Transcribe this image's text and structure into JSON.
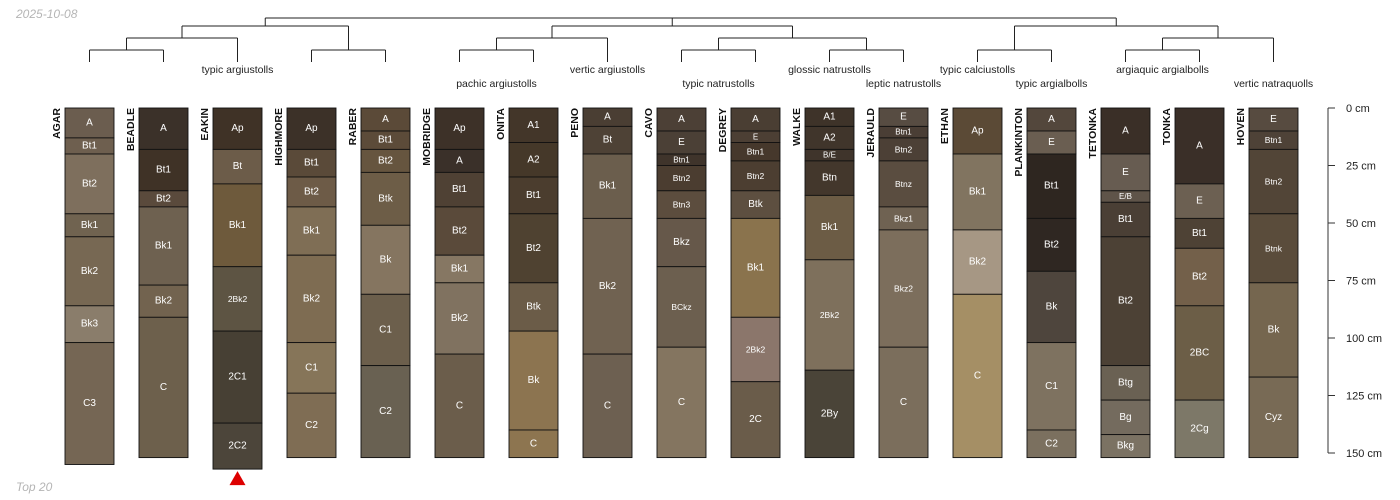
{
  "date_label": "2025-10-08",
  "footer_label": "Top 20",
  "depth_axis": {
    "max_cm": 150,
    "ticks": [
      {
        "value": 0,
        "label": "0 cm"
      },
      {
        "value": 25,
        "label": "25 cm"
      },
      {
        "value": 50,
        "label": "50 cm"
      },
      {
        "value": 75,
        "label": "75 cm"
      },
      {
        "value": 100,
        "label": "100 cm"
      },
      {
        "value": 125,
        "label": "125 cm"
      },
      {
        "value": 150,
        "label": "150 cm"
      }
    ]
  },
  "marker": {
    "profile": "EAKIN",
    "color": "#dd0000"
  },
  "taxa": [
    {
      "label": "typic argiustolls",
      "members": [
        "AGAR",
        "BEADLE",
        "EAKIN",
        "HIGHMORE",
        "RABER"
      ]
    },
    {
      "label": "pachic argiustolls",
      "members": [
        "MOBRIDGE",
        "ONITA"
      ]
    },
    {
      "label": "vertic argiustolls",
      "members": [
        "PENO"
      ]
    },
    {
      "label": "typic natrustolls",
      "members": [
        "CAVO",
        "DEGREY"
      ]
    },
    {
      "label": "glossic natrustolls",
      "members": [
        "WALKE"
      ]
    },
    {
      "label": "leptic natrustolls",
      "members": [
        "JERAULD"
      ]
    },
    {
      "label": "typic calciustolls",
      "members": [
        "ETHAN"
      ]
    },
    {
      "label": "typic argialbolls",
      "members": [
        "PLANKINTON"
      ]
    },
    {
      "label": "argiaquic argialbolls",
      "members": [
        "TETONKA",
        "TONKA"
      ]
    },
    {
      "label": "vertic natraquolls",
      "members": [
        "HOVEN"
      ]
    }
  ],
  "profiles": [
    {
      "name": "AGAR",
      "horizons": [
        {
          "name": "A",
          "top": 0,
          "bottom": 13,
          "color": "#6b5d4f"
        },
        {
          "name": "Bt1",
          "top": 13,
          "bottom": 20,
          "color": "#6e5f4f"
        },
        {
          "name": "Bt2",
          "top": 20,
          "bottom": 46,
          "color": "#7e6f5d"
        },
        {
          "name": "Bk1",
          "top": 46,
          "bottom": 56,
          "color": "#706350"
        },
        {
          "name": "Bk2",
          "top": 56,
          "bottom": 86,
          "color": "#776853"
        },
        {
          "name": "Bk3",
          "top": 86,
          "bottom": 102,
          "color": "#8a7d6b"
        },
        {
          "name": "C3",
          "top": 102,
          "bottom": 155,
          "color": "#756654"
        }
      ]
    },
    {
      "name": "BEADLE",
      "horizons": [
        {
          "name": "A",
          "top": 0,
          "bottom": 18,
          "color": "#3b3129"
        },
        {
          "name": "Bt1",
          "top": 18,
          "bottom": 36,
          "color": "#3f3226"
        },
        {
          "name": "Bt2",
          "top": 36,
          "bottom": 43,
          "color": "#5a4a3c"
        },
        {
          "name": "Bk1",
          "top": 43,
          "bottom": 77,
          "color": "#6e6150"
        },
        {
          "name": "Bk2",
          "top": 77,
          "bottom": 91,
          "color": "#72634f"
        },
        {
          "name": "C",
          "top": 91,
          "bottom": 152,
          "color": "#6d604c"
        }
      ]
    },
    {
      "name": "EAKIN",
      "horizons": [
        {
          "name": "Ap",
          "top": 0,
          "bottom": 18,
          "color": "#3f3226"
        },
        {
          "name": "Bt",
          "top": 18,
          "bottom": 33,
          "color": "#6c5c49"
        },
        {
          "name": "Bk1",
          "top": 33,
          "bottom": 69,
          "color": "#6e5a3c"
        },
        {
          "name": "2Bk2",
          "top": 69,
          "bottom": 97,
          "color": "#5d5443"
        },
        {
          "name": "2C1",
          "top": 97,
          "bottom": 137,
          "color": "#474034"
        },
        {
          "name": "2C2",
          "top": 137,
          "bottom": 157,
          "color": "#4c453a"
        }
      ]
    },
    {
      "name": "HIGHMORE",
      "horizons": [
        {
          "name": "Ap",
          "top": 0,
          "bottom": 18,
          "color": "#3c3128"
        },
        {
          "name": "Bt1",
          "top": 18,
          "bottom": 30,
          "color": "#5a4a39"
        },
        {
          "name": "Bt2",
          "top": 30,
          "bottom": 43,
          "color": "#6d5b47"
        },
        {
          "name": "Bk1",
          "top": 43,
          "bottom": 64,
          "color": "#7f6e55"
        },
        {
          "name": "Bk2",
          "top": 64,
          "bottom": 102,
          "color": "#7e6c52"
        },
        {
          "name": "C1",
          "top": 102,
          "bottom": 124,
          "color": "#867559"
        },
        {
          "name": "C2",
          "top": 124,
          "bottom": 152,
          "color": "#7f6d54"
        }
      ]
    },
    {
      "name": "RABER",
      "horizons": [
        {
          "name": "A",
          "top": 0,
          "bottom": 10,
          "color": "#5b4a38"
        },
        {
          "name": "Bt1",
          "top": 10,
          "bottom": 18,
          "color": "#5c4b39"
        },
        {
          "name": "Bt2",
          "top": 18,
          "bottom": 28,
          "color": "#66553f"
        },
        {
          "name": "Btk",
          "top": 28,
          "bottom": 51,
          "color": "#6d5d47"
        },
        {
          "name": "Bk",
          "top": 51,
          "bottom": 81,
          "color": "#857560"
        },
        {
          "name": "C1",
          "top": 81,
          "bottom": 112,
          "color": "#6c5f4c"
        },
        {
          "name": "C2",
          "top": 112,
          "bottom": 152,
          "color": "#696152"
        }
      ]
    },
    {
      "name": "MOBRIDGE",
      "horizons": [
        {
          "name": "Ap",
          "top": 0,
          "bottom": 18,
          "color": "#3d3128"
        },
        {
          "name": "A",
          "top": 18,
          "bottom": 28,
          "color": "#3a3029"
        },
        {
          "name": "Bt1",
          "top": 28,
          "bottom": 43,
          "color": "#4f4134"
        },
        {
          "name": "Bt2",
          "top": 43,
          "bottom": 64,
          "color": "#5a4a3a"
        },
        {
          "name": "Bk1",
          "top": 64,
          "bottom": 76,
          "color": "#867763"
        },
        {
          "name": "Bk2",
          "top": 76,
          "bottom": 107,
          "color": "#807260"
        },
        {
          "name": "C",
          "top": 107,
          "bottom": 152,
          "color": "#6b5d4b"
        }
      ]
    },
    {
      "name": "ONITA",
      "horizons": [
        {
          "name": "A1",
          "top": 0,
          "bottom": 15,
          "color": "#433629"
        },
        {
          "name": "A2",
          "top": 15,
          "bottom": 30,
          "color": "#453829"
        },
        {
          "name": "Bt1",
          "top": 30,
          "bottom": 46,
          "color": "#4b3d2e"
        },
        {
          "name": "Bt2",
          "top": 46,
          "bottom": 76,
          "color": "#4f4231"
        },
        {
          "name": "Btk",
          "top": 76,
          "bottom": 97,
          "color": "#6b5c48"
        },
        {
          "name": "Bk",
          "top": 97,
          "bottom": 140,
          "color": "#8c7450"
        },
        {
          "name": "C",
          "top": 140,
          "bottom": 152,
          "color": "#8d7550"
        }
      ]
    },
    {
      "name": "PENO",
      "horizons": [
        {
          "name": "A",
          "top": 0,
          "bottom": 8,
          "color": "#4a3e33"
        },
        {
          "name": "Bt",
          "top": 8,
          "bottom": 20,
          "color": "#4e4236"
        },
        {
          "name": "Bk1",
          "top": 20,
          "bottom": 48,
          "color": "#6b5e4d"
        },
        {
          "name": "Bk2",
          "top": 48,
          "bottom": 107,
          "color": "#706251"
        },
        {
          "name": "C",
          "top": 107,
          "bottom": 152,
          "color": "#6d6051"
        }
      ]
    },
    {
      "name": "CAVO",
      "horizons": [
        {
          "name": "A",
          "top": 0,
          "bottom": 10,
          "color": "#4c4036"
        },
        {
          "name": "E",
          "top": 10,
          "bottom": 20,
          "color": "#4b4036"
        },
        {
          "name": "Btn1",
          "top": 20,
          "bottom": 25,
          "color": "#3f342b"
        },
        {
          "name": "Btn2",
          "top": 25,
          "bottom": 36,
          "color": "#4b3d30"
        },
        {
          "name": "Btn3",
          "top": 36,
          "bottom": 48,
          "color": "#5c4d3e"
        },
        {
          "name": "Bkz",
          "top": 48,
          "bottom": 69,
          "color": "#66584a"
        },
        {
          "name": "BCkz",
          "top": 69,
          "bottom": 104,
          "color": "#6c5f4f"
        },
        {
          "name": "C",
          "top": 104,
          "bottom": 152,
          "color": "#847560"
        }
      ]
    },
    {
      "name": "DEGREY",
      "horizons": [
        {
          "name": "A",
          "top": 0,
          "bottom": 10,
          "color": "#4a3e33"
        },
        {
          "name": "E",
          "top": 10,
          "bottom": 15,
          "color": "#4c3f34"
        },
        {
          "name": "Btn1",
          "top": 15,
          "bottom": 23,
          "color": "#46382c"
        },
        {
          "name": "Btn2",
          "top": 23,
          "bottom": 36,
          "color": "#4c3e31"
        },
        {
          "name": "Btk",
          "top": 36,
          "bottom": 48,
          "color": "#5d4f40"
        },
        {
          "name": "Bk1",
          "top": 48,
          "bottom": 91,
          "color": "#8a734d"
        },
        {
          "name": "2Bk2",
          "top": 91,
          "bottom": 119,
          "color": "#8b766b"
        },
        {
          "name": "2C",
          "top": 119,
          "bottom": 152,
          "color": "#6a5c4a"
        }
      ]
    },
    {
      "name": "WALKE",
      "horizons": [
        {
          "name": "A1",
          "top": 0,
          "bottom": 8,
          "color": "#3e3329"
        },
        {
          "name": "A2",
          "top": 8,
          "bottom": 18,
          "color": "#40352b"
        },
        {
          "name": "B/E",
          "top": 18,
          "bottom": 23,
          "color": "#3f342b"
        },
        {
          "name": "Btn",
          "top": 23,
          "bottom": 38,
          "color": "#43372c"
        },
        {
          "name": "Bk1",
          "top": 38,
          "bottom": 66,
          "color": "#6c5c45"
        },
        {
          "name": "2Bk2",
          "top": 66,
          "bottom": 114,
          "color": "#7e705c"
        },
        {
          "name": "2By",
          "top": 114,
          "bottom": 152,
          "color": "#4a4438"
        }
      ]
    },
    {
      "name": "JERAULD",
      "horizons": [
        {
          "name": "E",
          "top": 0,
          "bottom": 8,
          "color": "#574c42"
        },
        {
          "name": "Btn1",
          "top": 8,
          "bottom": 13,
          "color": "#4a3e35"
        },
        {
          "name": "Btn2",
          "top": 13,
          "bottom": 23,
          "color": "#4c4036"
        },
        {
          "name": "Btnz",
          "top": 23,
          "bottom": 43,
          "color": "#5a4d40"
        },
        {
          "name": "Bkz1",
          "top": 43,
          "bottom": 53,
          "color": "#6f6252"
        },
        {
          "name": "Bkz2",
          "top": 53,
          "bottom": 104,
          "color": "#7c6e5c"
        },
        {
          "name": "C",
          "top": 104,
          "bottom": 152,
          "color": "#7b6e5c"
        }
      ]
    },
    {
      "name": "ETHAN",
      "horizons": [
        {
          "name": "Ap",
          "top": 0,
          "bottom": 20,
          "color": "#5b4a36"
        },
        {
          "name": "Bk1",
          "top": 20,
          "bottom": 53,
          "color": "#817460"
        },
        {
          "name": "Bk2",
          "top": 53,
          "bottom": 81,
          "color": "#a69784"
        },
        {
          "name": "C",
          "top": 81,
          "bottom": 152,
          "color": "#a58f65"
        }
      ]
    },
    {
      "name": "PLANKINTON",
      "horizons": [
        {
          "name": "A",
          "top": 0,
          "bottom": 10,
          "color": "#53473c"
        },
        {
          "name": "E",
          "top": 10,
          "bottom": 20,
          "color": "#6a5e51"
        },
        {
          "name": "Bt1",
          "top": 20,
          "bottom": 48,
          "color": "#2e2620"
        },
        {
          "name": "Bt2",
          "top": 48,
          "bottom": 71,
          "color": "#2f2722"
        },
        {
          "name": "Bk",
          "top": 71,
          "bottom": 102,
          "color": "#4e453d"
        },
        {
          "name": "C1",
          "top": 102,
          "bottom": 140,
          "color": "#7e7260"
        },
        {
          "name": "C2",
          "top": 140,
          "bottom": 152,
          "color": "#7b705f"
        }
      ]
    },
    {
      "name": "TETONKA",
      "horizons": [
        {
          "name": "A",
          "top": 0,
          "bottom": 20,
          "color": "#3a2f27"
        },
        {
          "name": "E",
          "top": 20,
          "bottom": 36,
          "color": "#675c51"
        },
        {
          "name": "E/B",
          "top": 36,
          "bottom": 41,
          "color": "#5f5449"
        },
        {
          "name": "Bt1",
          "top": 41,
          "bottom": 56,
          "color": "#4a3f35"
        },
        {
          "name": "Bt2",
          "top": 56,
          "bottom": 112,
          "color": "#4c4135"
        },
        {
          "name": "Btg",
          "top": 112,
          "bottom": 127,
          "color": "#6a6153"
        },
        {
          "name": "Bg",
          "top": 127,
          "bottom": 142,
          "color": "#746b5e"
        },
        {
          "name": "Bkg",
          "top": 142,
          "bottom": 152,
          "color": "#7b7263"
        }
      ]
    },
    {
      "name": "TONKA",
      "horizons": [
        {
          "name": "A",
          "top": 0,
          "bottom": 33,
          "color": "#3a2f28"
        },
        {
          "name": "E",
          "top": 33,
          "bottom": 48,
          "color": "#6c6052"
        },
        {
          "name": "Bt1",
          "top": 48,
          "bottom": 61,
          "color": "#4e4235"
        },
        {
          "name": "Bt2",
          "top": 61,
          "bottom": 86,
          "color": "#73604a"
        },
        {
          "name": "2BC",
          "top": 86,
          "bottom": 127,
          "color": "#6c5e47"
        },
        {
          "name": "2Cg",
          "top": 127,
          "bottom": 152,
          "color": "#7d7868"
        }
      ]
    },
    {
      "name": "HOVEN",
      "horizons": [
        {
          "name": "E",
          "top": 0,
          "bottom": 10,
          "color": "#574b40"
        },
        {
          "name": "Btn1",
          "top": 10,
          "bottom": 18,
          "color": "#4e4237"
        },
        {
          "name": "Btn2",
          "top": 18,
          "bottom": 46,
          "color": "#524537"
        },
        {
          "name": "Btnk",
          "top": 46,
          "bottom": 76,
          "color": "#5a4c3b"
        },
        {
          "name": "Bk",
          "top": 76,
          "bottom": 117,
          "color": "#75664f"
        },
        {
          "name": "Cyz",
          "top": 117,
          "bottom": 152,
          "color": "#786a55"
        }
      ]
    }
  ]
}
